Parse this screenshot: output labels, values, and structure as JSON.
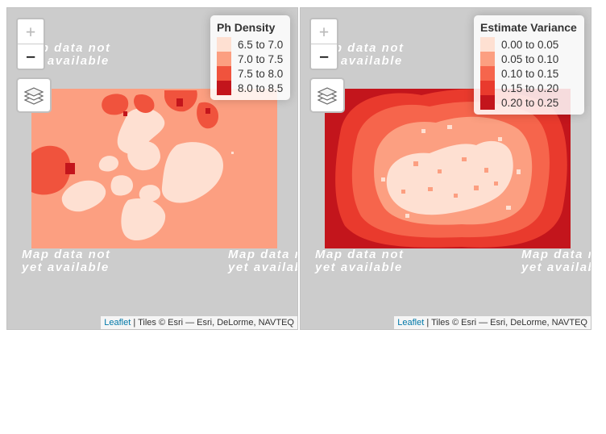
{
  "maps": [
    {
      "id": "left",
      "tile_placeholder": [
        "Map data not",
        "yet available"
      ],
      "zoom": {
        "in_label": "+",
        "out_label": "−"
      },
      "legend": {
        "title": "Ph Density",
        "items": [
          {
            "label": "6.5 to 7.0",
            "color": "#fee0d2"
          },
          {
            "label": "7.0 to 7.5",
            "color": "#fc9f81"
          },
          {
            "label": "7.5 to 8.0",
            "color": "#f0533d"
          },
          {
            "label": "8.0 to 8.5",
            "color": "#c3151c"
          }
        ]
      },
      "attribution": {
        "leaflet": "Leaflet",
        "separator": " | ",
        "text": "Tiles © Esri — Esri, DeLorme, NAVTEQ"
      }
    },
    {
      "id": "right",
      "tile_placeholder": [
        "Map data not",
        "yet available"
      ],
      "zoom": {
        "in_label": "+",
        "out_label": "−"
      },
      "legend": {
        "title": "Estimate Variance",
        "items": [
          {
            "label": "0.00 to 0.05",
            "color": "#fee0d2"
          },
          {
            "label": "0.05 to 0.10",
            "color": "#fc9f81"
          },
          {
            "label": "0.10 to 0.15",
            "color": "#f6654c"
          },
          {
            "label": "0.15 to 0.20",
            "color": "#e93a2d"
          },
          {
            "label": "0.20 to 0.25",
            "color": "#c3151c"
          }
        ]
      },
      "attribution": {
        "leaflet": "Leaflet",
        "separator": " | ",
        "text": "Tiles © Esri — Esri, DeLorme, NAVTEQ"
      }
    }
  ]
}
